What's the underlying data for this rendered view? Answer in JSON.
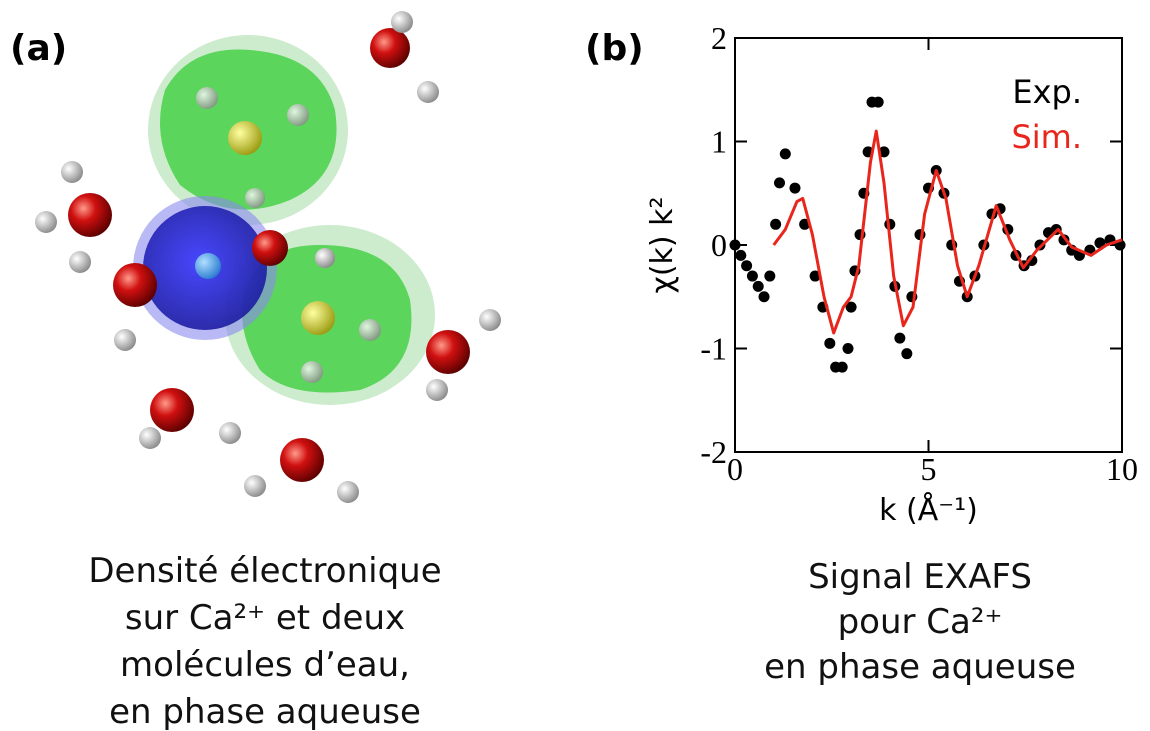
{
  "panel_a": {
    "label": "(a)",
    "caption": [
      "Densité électronique",
      "sur Ca²⁺ et deux",
      "molécules d’eau,",
      "en phase aqueuse"
    ]
  },
  "panel_b": {
    "label": "(b)",
    "caption": [
      "Signal EXAFS",
      "pour Ca²⁺",
      "en phase aqueuse"
    ]
  },
  "chart_data": {
    "type": "line",
    "xlabel": "k (Å⁻¹)",
    "ylabel": "χ(k) k²",
    "xlim": [
      0,
      10
    ],
    "ylim": [
      -2,
      2
    ],
    "xticks": [
      0,
      5,
      10
    ],
    "yticks": [
      -2,
      -1,
      0,
      1,
      2
    ],
    "legend": "top-right",
    "series": [
      {
        "name": "Exp.",
        "color": "#000000",
        "style": "markers",
        "x": [
          0,
          0.15,
          0.3,
          0.45,
          0.6,
          0.75,
          0.9,
          1.05,
          1.15,
          1.3,
          1.55,
          1.8,
          2.07,
          2.27,
          2.45,
          2.6,
          2.77,
          2.92,
          3.0,
          3.1,
          3.23,
          3.33,
          3.44,
          3.54,
          3.7,
          3.85,
          4.0,
          4.13,
          4.26,
          4.44,
          4.57,
          4.78,
          5.0,
          5.2,
          5.4,
          5.6,
          5.8,
          6.0,
          6.2,
          6.43,
          6.64,
          6.85,
          7.05,
          7.26,
          7.47,
          7.67,
          7.88,
          8.1,
          8.3,
          8.5,
          8.7,
          8.9,
          9.17,
          9.43,
          9.69,
          9.95
        ],
        "values": [
          0,
          -0.1,
          -0.2,
          -0.3,
          -0.4,
          -0.5,
          -0.3,
          0.2,
          0.6,
          0.88,
          0.55,
          0.2,
          -0.3,
          -0.6,
          -0.95,
          -1.18,
          -1.18,
          -1.0,
          -0.6,
          -0.25,
          0.1,
          0.5,
          0.9,
          1.38,
          1.38,
          0.9,
          0.2,
          -0.4,
          -0.9,
          -1.05,
          -0.5,
          0.1,
          0.55,
          0.72,
          0.5,
          0,
          -0.35,
          -0.5,
          -0.3,
          0,
          0.3,
          0.35,
          0.15,
          -0.1,
          -0.2,
          -0.15,
          0,
          0.12,
          0.15,
          0.05,
          -0.05,
          -0.1,
          -0.05,
          0.02,
          0.05,
          0
        ]
      },
      {
        "name": "Sim.",
        "color": "#e8261c",
        "style": "line",
        "x": [
          1.0,
          1.3,
          1.6,
          1.75,
          2.0,
          2.3,
          2.55,
          2.8,
          3.0,
          3.2,
          3.5,
          3.65,
          3.85,
          4.1,
          4.35,
          4.6,
          4.9,
          5.2,
          5.45,
          5.75,
          6.0,
          6.3,
          6.75,
          7.1,
          7.45,
          7.8,
          8.35,
          8.7,
          9.2,
          9.6,
          10
        ],
        "values": [
          0,
          0.15,
          0.42,
          0.45,
          0.1,
          -0.5,
          -0.85,
          -0.6,
          -0.5,
          -0.2,
          0.8,
          1.1,
          0.6,
          -0.3,
          -0.78,
          -0.6,
          0.3,
          0.72,
          0.45,
          -0.2,
          -0.5,
          -0.2,
          0.38,
          0.05,
          -0.22,
          -0.05,
          0.15,
          -0.02,
          -0.1,
          0,
          0.05
        ]
      }
    ]
  }
}
